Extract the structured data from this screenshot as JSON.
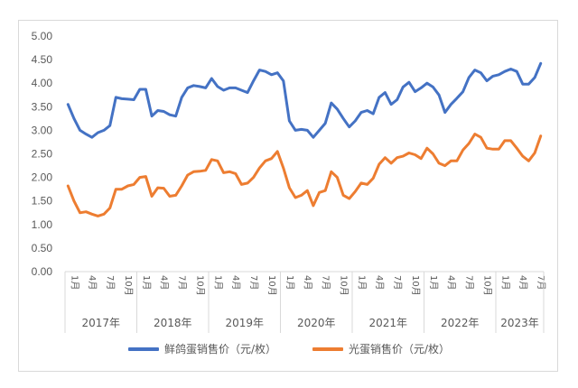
{
  "chart_data": {
    "type": "line",
    "title": "",
    "xlabel": "",
    "ylabel": "",
    "ylim": [
      0,
      5
    ],
    "yticks": [
      "0.00",
      "0.50",
      "1.00",
      "1.50",
      "2.00",
      "2.50",
      "3.00",
      "3.50",
      "4.00",
      "4.50",
      "5.00"
    ],
    "grid": false,
    "legend_position": "bottom",
    "years": [
      "2017年",
      "2018年",
      "2019年",
      "2020年",
      "2021年",
      "2022年",
      "2023年"
    ],
    "month_labels": [
      "1月",
      "4月",
      "7月",
      "10月"
    ],
    "months_per_year": [
      12,
      12,
      12,
      12,
      12,
      12,
      8
    ],
    "series": [
      {
        "name": "鲜鸽蛋销售价（元/枚）",
        "color": "#4472C4",
        "values": [
          3.55,
          3.25,
          3.0,
          2.92,
          2.85,
          2.95,
          3.0,
          3.1,
          3.7,
          3.67,
          3.66,
          3.65,
          3.87,
          3.87,
          3.3,
          3.42,
          3.4,
          3.33,
          3.3,
          3.7,
          3.9,
          3.95,
          3.93,
          3.9,
          4.1,
          3.93,
          3.85,
          3.9,
          3.9,
          3.85,
          3.8,
          4.05,
          4.28,
          4.25,
          4.18,
          4.22,
          4.05,
          3.2,
          3.0,
          3.02,
          3.0,
          2.85,
          3.0,
          3.15,
          3.58,
          3.45,
          3.25,
          3.07,
          3.2,
          3.38,
          3.42,
          3.35,
          3.7,
          3.8,
          3.55,
          3.65,
          3.92,
          4.02,
          3.82,
          3.9,
          4.0,
          3.92,
          3.75,
          3.38,
          3.55,
          3.68,
          3.82,
          4.12,
          4.28,
          4.22,
          4.05,
          4.15,
          4.18,
          4.25,
          4.3,
          4.25,
          3.98,
          3.98,
          4.12,
          4.42
        ]
      },
      {
        "name": "光蛋销售价（元/枚）",
        "color": "#ED7D31",
        "values": [
          1.82,
          1.5,
          1.25,
          1.27,
          1.22,
          1.18,
          1.22,
          1.35,
          1.75,
          1.75,
          1.82,
          1.85,
          2.0,
          2.02,
          1.6,
          1.78,
          1.77,
          1.6,
          1.62,
          1.82,
          2.05,
          2.12,
          2.13,
          2.15,
          2.38,
          2.35,
          2.1,
          2.12,
          2.08,
          1.85,
          1.88,
          2.0,
          2.2,
          2.35,
          2.4,
          2.55,
          2.2,
          1.78,
          1.57,
          1.62,
          1.72,
          1.4,
          1.68,
          1.72,
          2.12,
          2.0,
          1.62,
          1.55,
          1.7,
          1.88,
          1.85,
          1.98,
          2.28,
          2.42,
          2.3,
          2.42,
          2.45,
          2.52,
          2.48,
          2.4,
          2.62,
          2.5,
          2.3,
          2.25,
          2.35,
          2.35,
          2.58,
          2.72,
          2.92,
          2.85,
          2.62,
          2.6,
          2.6,
          2.78,
          2.78,
          2.62,
          2.45,
          2.35,
          2.52,
          2.88
        ]
      }
    ]
  },
  "legend": {
    "items": [
      {
        "label": "鲜鸽蛋销售价（元/枚）",
        "color": "#4472C4"
      },
      {
        "label": "光蛋销售价（元/枚）",
        "color": "#ED7D31"
      }
    ]
  }
}
